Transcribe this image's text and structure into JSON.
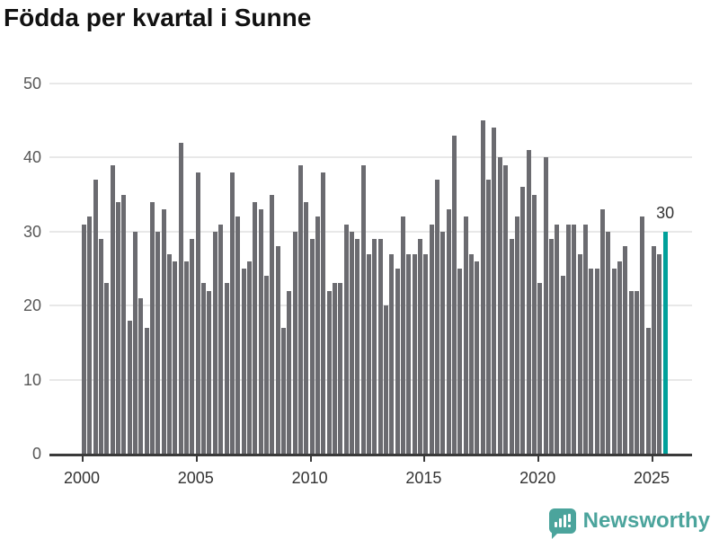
{
  "title": "Födda per kvartal i Sunne",
  "chart_data": {
    "type": "bar",
    "title": "Födda per kvartal i Sunne",
    "x_start": "2000 Q1",
    "x_end": "2025 Q3",
    "frequency": "quarterly",
    "values": [
      31,
      32,
      37,
      29,
      23,
      39,
      34,
      35,
      18,
      30,
      21,
      17,
      34,
      30,
      33,
      27,
      26,
      42,
      26,
      29,
      38,
      23,
      22,
      30,
      31,
      23,
      38,
      32,
      25,
      26,
      34,
      33,
      24,
      35,
      28,
      17,
      22,
      30,
      39,
      34,
      29,
      32,
      38,
      22,
      23,
      23,
      31,
      30,
      29,
      39,
      27,
      29,
      29,
      20,
      27,
      25,
      32,
      27,
      27,
      29,
      27,
      31,
      37,
      30,
      33,
      43,
      25,
      32,
      27,
      26,
      45,
      37,
      44,
      40,
      39,
      29,
      32,
      36,
      41,
      35,
      23,
      40,
      29,
      31,
      24,
      31,
      31,
      27,
      31,
      25,
      25,
      33,
      30,
      25,
      26,
      28,
      22,
      22,
      32,
      17,
      28,
      27,
      30
    ],
    "ylim": [
      0,
      50
    ],
    "yticks": [
      0,
      10,
      20,
      30,
      40,
      50
    ],
    "xticks": [
      2000,
      2005,
      2010,
      2015,
      2020,
      2025
    ],
    "grid": true,
    "legend": "none",
    "bar_color": "#6b6b70",
    "highlight_color": "#00a09a",
    "highlight_index": 102,
    "annotation": {
      "text": "30",
      "index": 102
    },
    "grid_color": "#e8e8e8",
    "axis_color": "#3a3a3a",
    "tick_label_color": "#575757",
    "xlabel": "",
    "ylabel": ""
  },
  "footer": {
    "brand": "Newsworthy",
    "brand_color": "#4ba49c",
    "icon": "newsworthy-logo-icon"
  }
}
